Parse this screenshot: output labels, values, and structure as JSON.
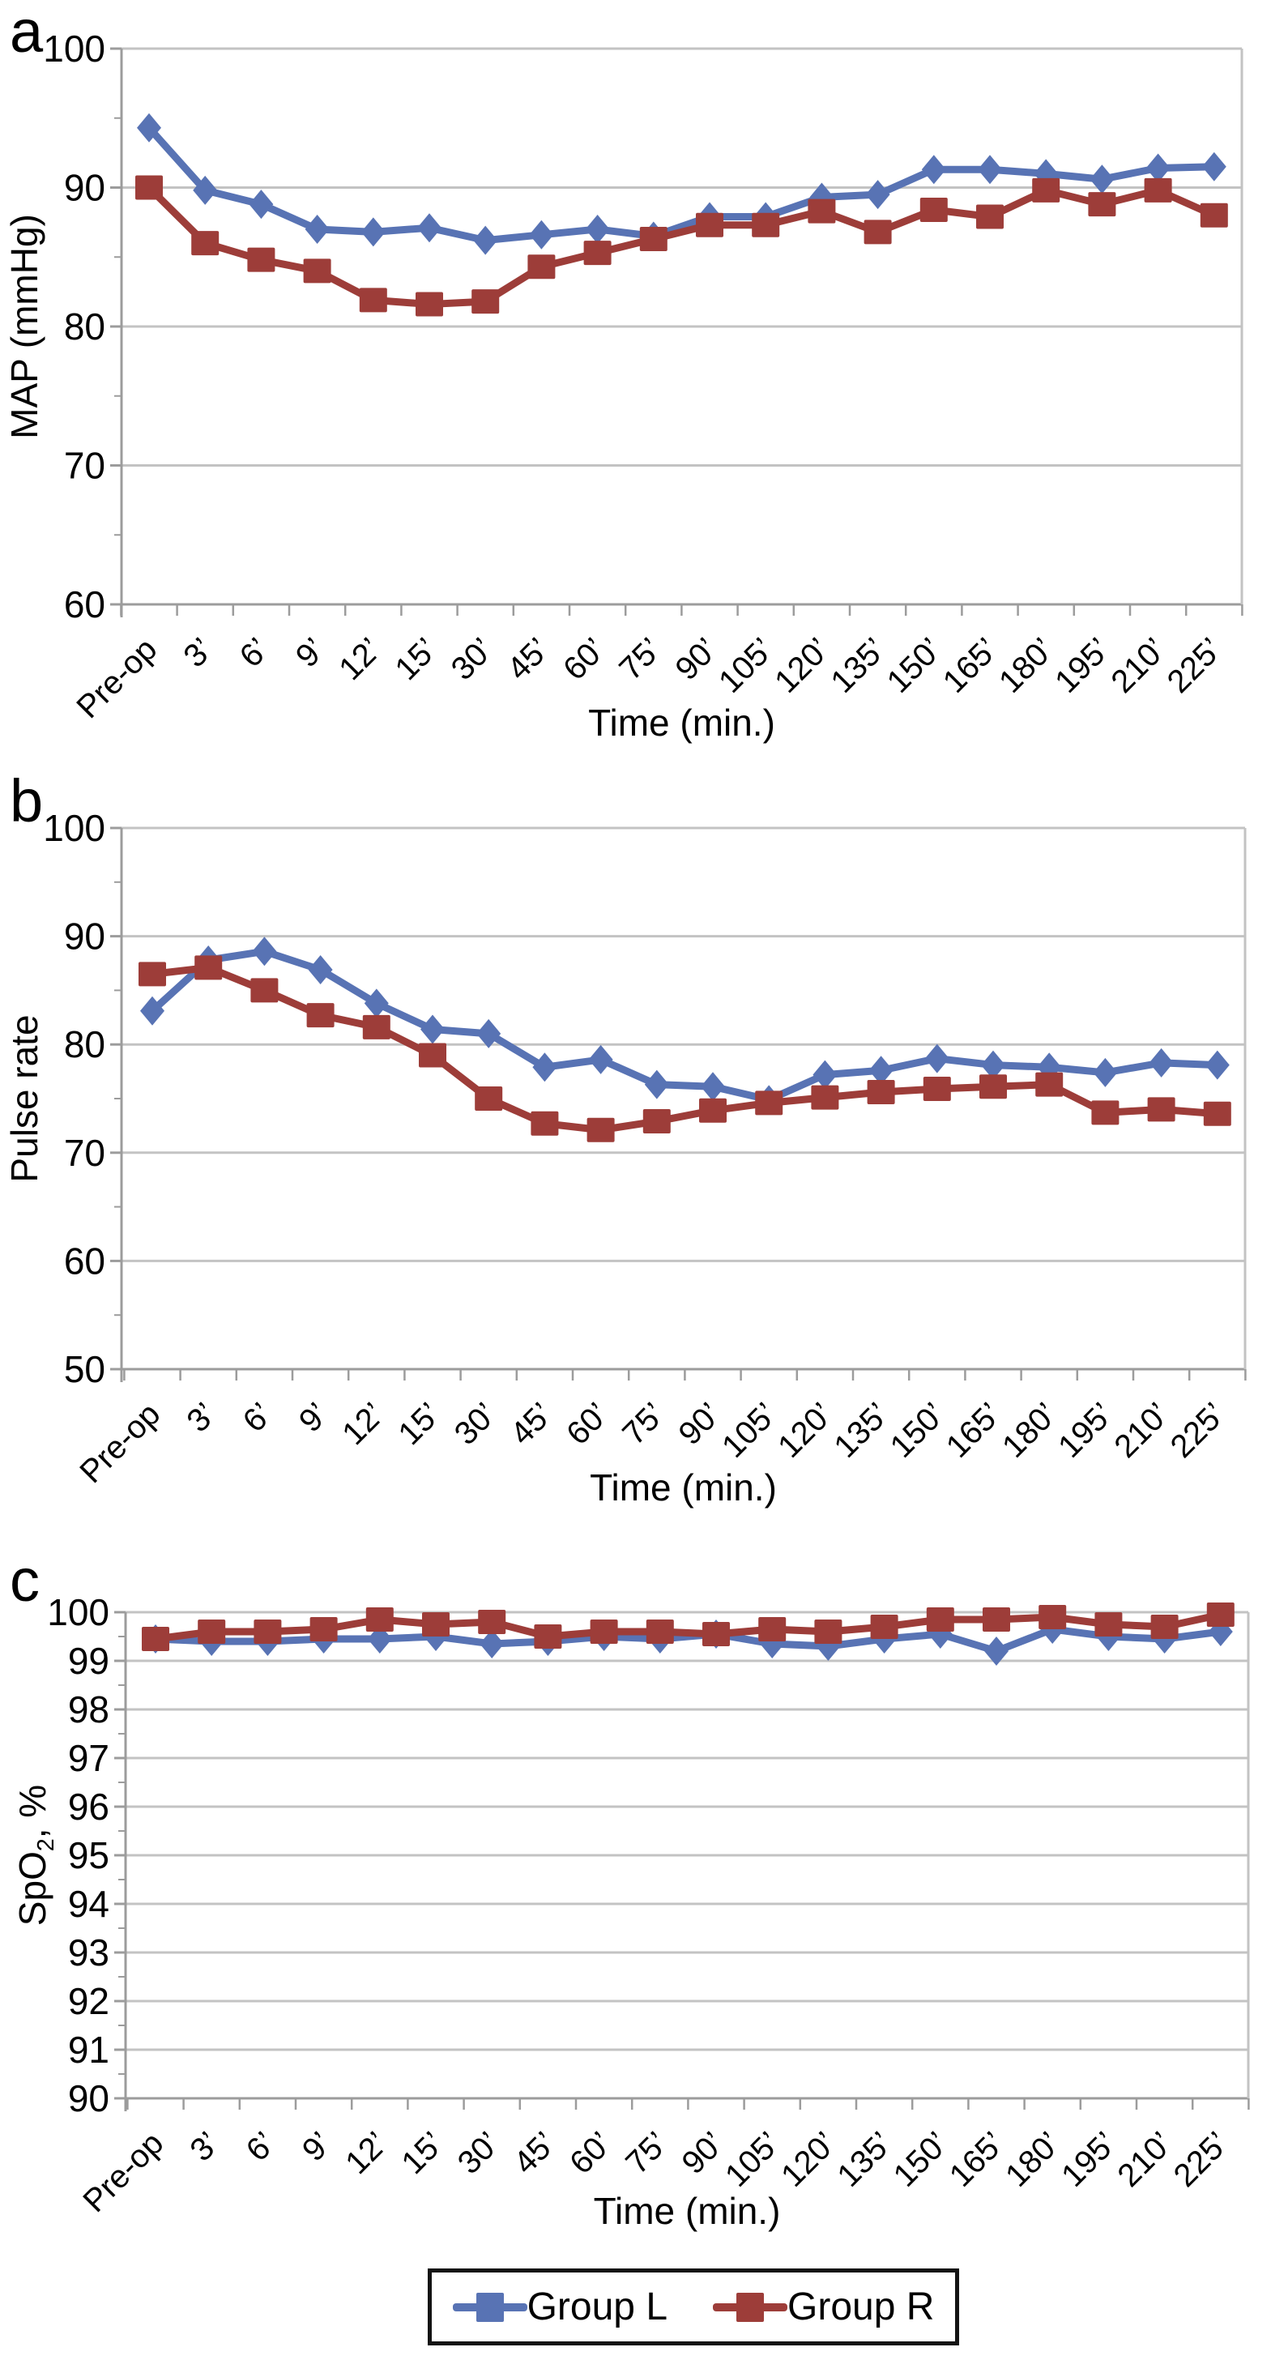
{
  "figure": {
    "legend": {
      "position": "bottom",
      "items": [
        {
          "label": "Group L",
          "color": "#5873B4",
          "marker": "square-with-line"
        },
        {
          "label": "Group R",
          "color": "#9D3D39",
          "marker": "square-with-line"
        }
      ]
    }
  },
  "chart_data": [
    {
      "type": "line",
      "panel_letter": "a",
      "ylabel": "MAP (mmHg)",
      "ylabel_parts": {
        "pre": "MAP (mmHg)",
        "sub": "",
        "post": ""
      },
      "xlabel": "Time (min.)",
      "ylim": [
        60,
        100
      ],
      "y_ticks": [
        100,
        90,
        80,
        70,
        60
      ],
      "y_minor_step": 5,
      "grid": true,
      "categories": [
        "Pre-op",
        "3’",
        "6’",
        "9’",
        "12’",
        "15’",
        "30’",
        "45’",
        "60’",
        "75’",
        "90’",
        "105’",
        "120’",
        "135’",
        "150’",
        "165’",
        "180’",
        "195’",
        "210’",
        "225’"
      ],
      "series": [
        {
          "name": "Group L",
          "color": "#5873B4",
          "marker": "diamond",
          "values": [
            94.3,
            89.8,
            88.8,
            87.0,
            86.8,
            87.1,
            86.2,
            86.6,
            87.0,
            86.5,
            87.9,
            87.9,
            89.3,
            89.5,
            91.3,
            91.3,
            91.0,
            90.6,
            91.4,
            91.5
          ]
        },
        {
          "name": "Group R",
          "color": "#9D3D39",
          "marker": "square",
          "values": [
            90.0,
            86.0,
            84.8,
            84.0,
            81.9,
            81.6,
            81.8,
            84.3,
            85.3,
            86.3,
            87.3,
            87.3,
            88.3,
            86.8,
            88.4,
            87.9,
            89.8,
            88.8,
            89.8,
            88.0
          ]
        }
      ]
    },
    {
      "type": "line",
      "panel_letter": "b",
      "ylabel": "Pulse rate",
      "ylabel_parts": {
        "pre": "Pulse rate",
        "sub": "",
        "post": ""
      },
      "xlabel": "Time (min.)",
      "ylim": [
        50,
        100
      ],
      "y_ticks": [
        100,
        90,
        80,
        70,
        60,
        50
      ],
      "y_minor_step": 5,
      "grid": true,
      "categories": [
        "Pre-op",
        "3’",
        "6’",
        "9’",
        "12’",
        "15’",
        "30’",
        "45’",
        "60’",
        "75’",
        "90’",
        "105’",
        "120’",
        "135’",
        "150’",
        "165’",
        "180’",
        "195’",
        "210’",
        "225’"
      ],
      "series": [
        {
          "name": "Group L",
          "color": "#5873B4",
          "marker": "diamond",
          "values": [
            83.1,
            87.8,
            88.6,
            86.9,
            83.8,
            81.4,
            81.0,
            77.9,
            78.6,
            76.3,
            76.1,
            74.9,
            77.2,
            77.6,
            78.7,
            78.1,
            77.9,
            77.4,
            78.3,
            78.1
          ]
        },
        {
          "name": "Group R",
          "color": "#9D3D39",
          "marker": "square",
          "values": [
            86.5,
            87.1,
            85.0,
            82.7,
            81.6,
            79.0,
            75.0,
            72.7,
            72.1,
            72.9,
            73.9,
            74.6,
            75.1,
            75.6,
            75.9,
            76.1,
            76.3,
            73.7,
            74.0,
            73.6
          ]
        }
      ]
    },
    {
      "type": "line",
      "panel_letter": "c",
      "ylabel": "SpO2, %",
      "ylabel_parts": {
        "pre": "SpO",
        "sub": "2",
        "post": ", %"
      },
      "xlabel": "Time (min.)",
      "ylim": [
        90,
        100
      ],
      "y_ticks": [
        100,
        99,
        98,
        97,
        96,
        95,
        94,
        93,
        92,
        91,
        90
      ],
      "y_minor_step": 0.5,
      "grid": true,
      "categories": [
        "Pre-op",
        "3’",
        "6’",
        "9’",
        "12’",
        "15’",
        "30’",
        "45’",
        "60’",
        "75’",
        "90’",
        "105’",
        "120’",
        "135’",
        "150’",
        "165’",
        "180’",
        "195’",
        "210’",
        "225’"
      ],
      "series": [
        {
          "name": "Group L",
          "color": "#5873B4",
          "marker": "diamond",
          "values": [
            99.45,
            99.4,
            99.4,
            99.45,
            99.45,
            99.5,
            99.35,
            99.4,
            99.5,
            99.45,
            99.55,
            99.35,
            99.3,
            99.45,
            99.55,
            99.2,
            99.65,
            99.5,
            99.45,
            99.6
          ]
        },
        {
          "name": "Group R",
          "color": "#9D3D39",
          "marker": "square",
          "values": [
            99.45,
            99.6,
            99.6,
            99.65,
            99.85,
            99.75,
            99.8,
            99.5,
            99.6,
            99.6,
            99.55,
            99.65,
            99.6,
            99.7,
            99.85,
            99.85,
            99.9,
            99.75,
            99.7,
            99.95
          ]
        }
      ]
    }
  ]
}
